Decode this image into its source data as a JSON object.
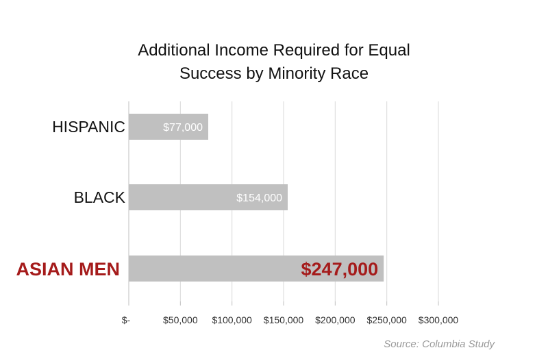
{
  "chart_data": {
    "type": "bar",
    "orientation": "horizontal",
    "title_line1": "Additional Income Required for Equal",
    "title_line2": "Success by Minority Race",
    "categories": [
      "HISPANIC",
      "BLACK",
      "ASIAN MEN"
    ],
    "values": [
      77000,
      154000,
      247000
    ],
    "value_labels": [
      "$77,000",
      "$154,000",
      "$247,000"
    ],
    "highlight_index": 2,
    "xlim": [
      0,
      300000
    ],
    "xticks": [
      0,
      50000,
      100000,
      150000,
      200000,
      250000,
      300000
    ],
    "xtick_labels": [
      "$-",
      "$50,000",
      "$100,000",
      "$150,000",
      "$200,000",
      "$250,000",
      "$300,000"
    ],
    "grid": true,
    "colors": {
      "bar": "#c0c0c0",
      "highlight_text": "#a51b1b",
      "label_text": "#ffffff",
      "category_text": "#111111",
      "grid": "#d9d9d9"
    },
    "source": "Source: Columbia Study"
  }
}
